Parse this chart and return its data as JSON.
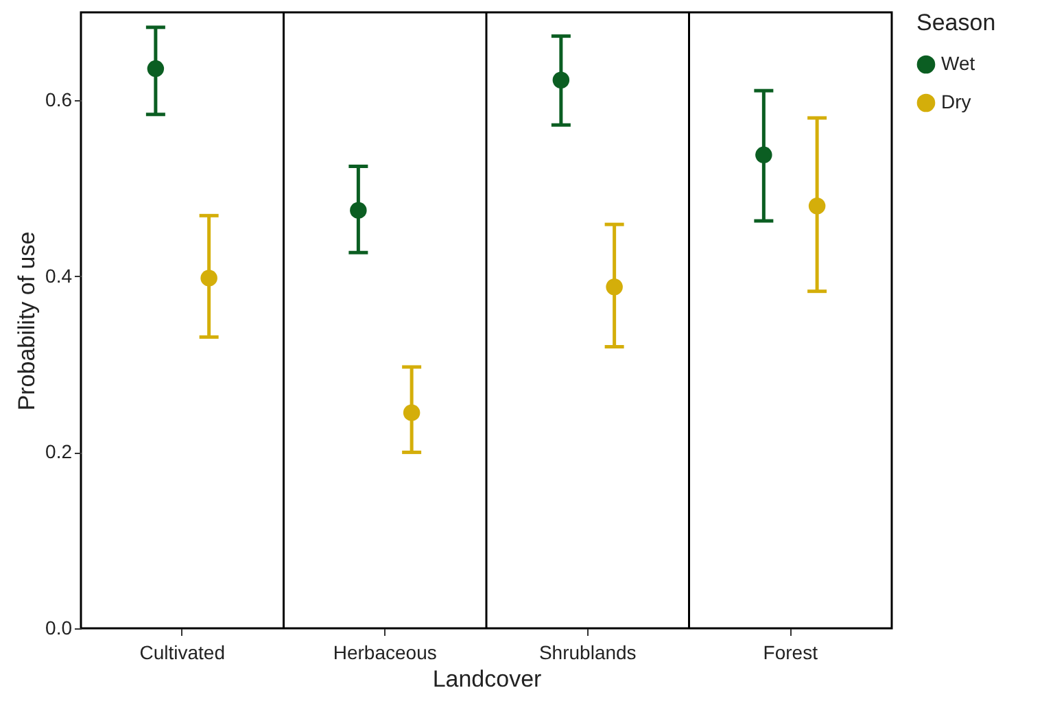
{
  "chart_data": {
    "type": "scatter",
    "xlabel": "Landcover",
    "ylabel": "Probability of use",
    "legend_title": "Season",
    "legend": "right",
    "marker": "circle",
    "grid": "x",
    "categories": [
      "Cultivated",
      "Herbaceous",
      "Shrublands",
      "Forest"
    ],
    "ylim": [
      0,
      0.7
    ],
    "yticks": [
      {
        "value": 0,
        "label": "0.0"
      },
      0.2,
      0.4,
      0.6
    ],
    "series": [
      {
        "name": "Wet",
        "color": "#0b5e22",
        "values": [
          0.636,
          0.475,
          0.623,
          0.538
        ],
        "errors": [
          [
            0.584,
            0.683
          ],
          [
            0.427,
            0.525
          ],
          [
            0.572,
            0.673
          ],
          [
            0.463,
            0.611
          ]
        ]
      },
      {
        "name": "Dry",
        "color": "#d4ae0a",
        "values": [
          0.398,
          0.245,
          0.388,
          0.48
        ],
        "errors": [
          [
            0.331,
            0.469
          ],
          [
            0.2,
            0.297
          ],
          [
            0.32,
            0.459
          ],
          [
            0.383,
            0.58
          ]
        ]
      }
    ]
  }
}
